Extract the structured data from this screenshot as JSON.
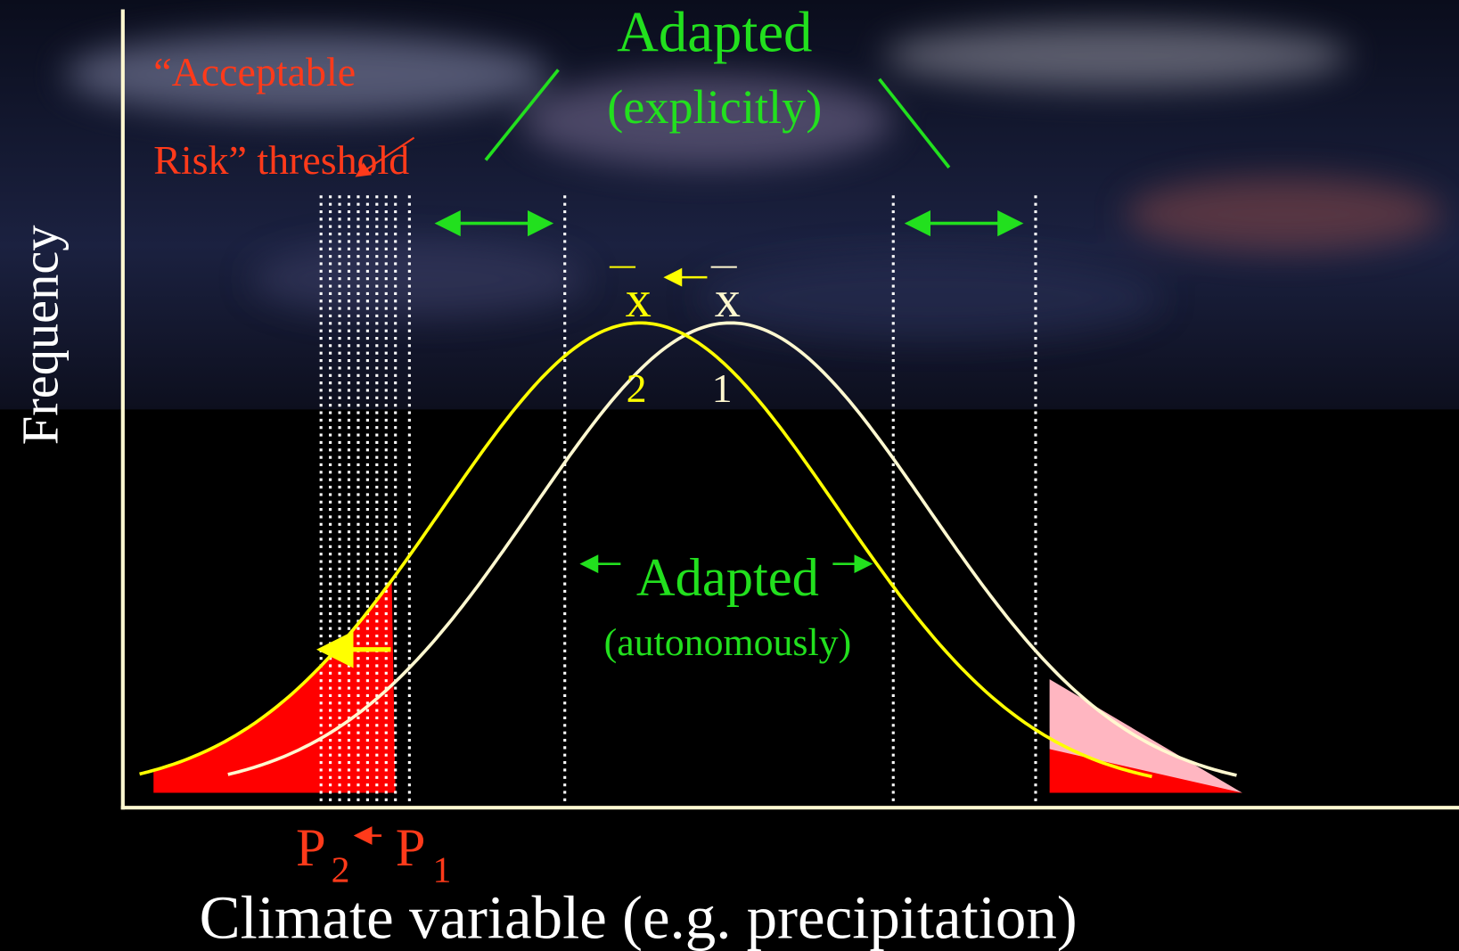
{
  "axes": {
    "y_label": "Frequency",
    "x_label": "Climate variable (e.g. precipitation)"
  },
  "threshold": {
    "line1": "“Acceptable",
    "line2": "Risk” threshold"
  },
  "adapted_explicitly": {
    "title": "Adapted",
    "subtitle": "(explicitly)"
  },
  "adapted_autonomously": {
    "title": "Adapted",
    "subtitle": "(autonomously)"
  },
  "means": [
    {
      "symbol": "x",
      "subscript": "2"
    },
    {
      "symbol": "x",
      "subscript": "1"
    }
  ],
  "probabilities": [
    {
      "symbol": "P",
      "subscript": "2"
    },
    {
      "symbol": "P",
      "subscript": "1"
    }
  ]
}
